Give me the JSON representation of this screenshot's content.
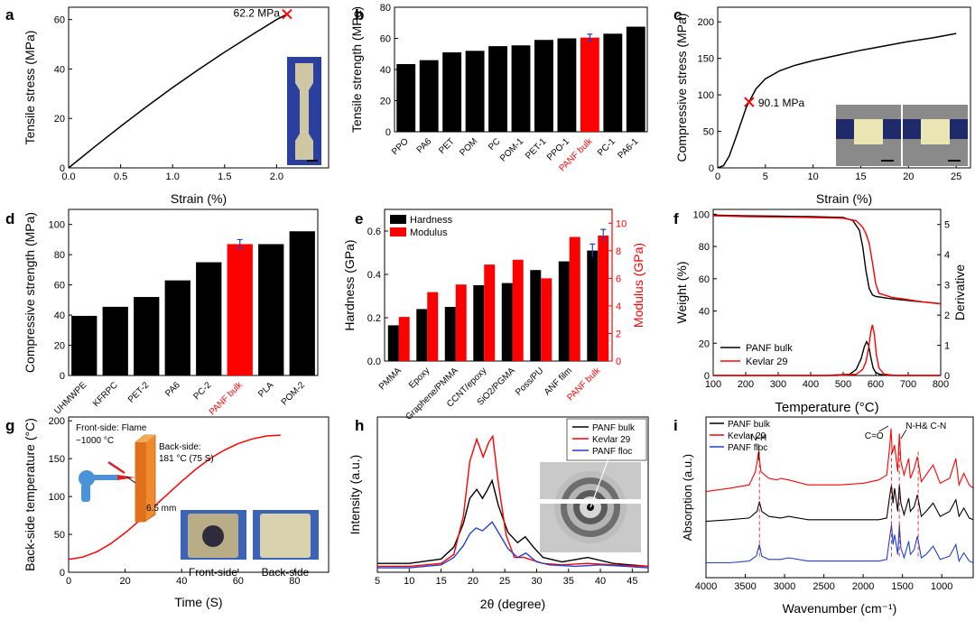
{
  "chart_data": [
    {
      "id": "a",
      "panel_label": "a",
      "type": "line",
      "xlabel": "Strain (%)",
      "ylabel": "Tensile stress (MPa)",
      "xlim": [
        0,
        2.5
      ],
      "ylim": [
        0,
        65
      ],
      "xticks": [
        0,
        0.5,
        1.0,
        1.5,
        2.0
      ],
      "xtick_labels": [
        "0.0",
        "0.5",
        "1.0",
        "1.5",
        "2.0"
      ],
      "yticks": [
        0,
        20,
        40,
        60
      ],
      "ytick_labels": [
        "0",
        "20",
        "40",
        "60"
      ],
      "series": [
        {
          "name": "tensile",
          "color": "#000000",
          "x": [
            0,
            0.25,
            0.5,
            0.75,
            1.0,
            1.25,
            1.5,
            1.75,
            2.0,
            2.1
          ],
          "y": [
            0,
            8.5,
            16.8,
            24.8,
            32.5,
            39.8,
            46.8,
            53.5,
            60.0,
            62.2
          ]
        }
      ],
      "marker": {
        "x": 2.1,
        "y": 62.2,
        "label": "62.2 MPa",
        "color": "#ff0000"
      }
    },
    {
      "id": "b",
      "panel_label": "b",
      "type": "bar",
      "ylabel": "Tensile strength (MPa)",
      "ylim": [
        0,
        80
      ],
      "yticks": [
        0,
        20,
        40,
        60,
        80
      ],
      "ytick_labels": [
        "0",
        "20",
        "40",
        "60",
        "80"
      ],
      "categories": [
        "PPO",
        "PA6",
        "PET",
        "POM",
        "PC",
        "POM-1",
        "PET-1",
        "PPO-1",
        "PANF bulk",
        "PC-1",
        "PA6-1"
      ],
      "values": [
        43.5,
        46,
        51,
        52,
        55,
        55.5,
        59,
        60,
        60.5,
        63,
        67.5
      ],
      "highlight": "PANF bulk",
      "highlight_color": "#ff0000",
      "bar_color": "#000000",
      "error": {
        "category": "PANF bulk",
        "value": 2.2,
        "color": "#1f3fd8"
      }
    },
    {
      "id": "c",
      "panel_label": "c",
      "type": "line",
      "xlabel": "Strain (%)",
      "ylabel": "Compressive stress (MPa)",
      "xlim": [
        0,
        26.5
      ],
      "ylim": [
        0,
        220
      ],
      "xticks": [
        0,
        5,
        10,
        15,
        20,
        25
      ],
      "xtick_labels": [
        "0",
        "5",
        "10",
        "15",
        "20",
        "25"
      ],
      "yticks": [
        0,
        50,
        100,
        150,
        200
      ],
      "ytick_labels": [
        "0",
        "50",
        "100",
        "150",
        "200"
      ],
      "series": [
        {
          "name": "compressive",
          "color": "#000000",
          "x": [
            0,
            0.6,
            1.2,
            2,
            3,
            4,
            5,
            6.5,
            8,
            10,
            12.5,
            15,
            17.5,
            20,
            22.5,
            25
          ],
          "y": [
            0,
            3,
            16,
            45,
            83,
            108,
            122,
            133,
            140,
            147,
            154,
            161,
            167,
            173,
            178,
            184
          ]
        }
      ],
      "marker": {
        "x": 3.3,
        "y": 90.1,
        "label": "90.1 MPa",
        "color": "#ff0000"
      }
    },
    {
      "id": "d",
      "panel_label": "d",
      "type": "bar",
      "ylabel": "Compressive strength (MPa)",
      "ylim": [
        0,
        110
      ],
      "yticks": [
        0,
        20,
        40,
        60,
        80,
        100
      ],
      "ytick_labels": [
        "0",
        "20",
        "40",
        "60",
        "80",
        "100"
      ],
      "categories": [
        "UHMWPE",
        "KFRPC",
        "PET-2",
        "PA6",
        "PC-2",
        "PANF bulk",
        "PLA",
        "POM-2"
      ],
      "values": [
        39.5,
        45.5,
        52,
        63,
        75,
        87,
        87,
        95.5
      ],
      "highlight": "PANF bulk",
      "highlight_color": "#ff0000",
      "bar_color": "#000000",
      "error": {
        "category": "PANF bulk",
        "value": 3,
        "color": "#1f3fd8"
      }
    },
    {
      "id": "e",
      "panel_label": "e",
      "type": "bar",
      "ylabel": "Hardness (GPa)",
      "y2label": "Modulus (GPa)",
      "ylim": [
        0,
        0.7
      ],
      "y2lim": [
        0,
        11
      ],
      "yticks": [
        0.0,
        0.2,
        0.4,
        0.6
      ],
      "ytick_labels": [
        "0.0",
        "0.2",
        "0.4",
        "0.6"
      ],
      "y2ticks": [
        0,
        2,
        4,
        6,
        8,
        10
      ],
      "y2tick_labels": [
        "0",
        "2",
        "4",
        "6",
        "8",
        "10"
      ],
      "categories": [
        "PMMA",
        "Epoxy",
        "Graphene/PMMA",
        "CCNT/epoxy",
        "SiO2/PGMA",
        "Poss/PU",
        "ANF film",
        "PANF bulk"
      ],
      "series": [
        {
          "name": "Hardness",
          "color": "#000000",
          "axis": "left",
          "values": [
            0.165,
            0.24,
            0.25,
            0.35,
            0.36,
            0.42,
            0.46,
            0.51
          ]
        },
        {
          "name": "Modulus",
          "color": "#ff0000",
          "axis": "right",
          "values": [
            3.2,
            5.0,
            5.55,
            7.0,
            7.35,
            6.0,
            9.0,
            9.1
          ]
        }
      ],
      "errors": {
        "Hardness": 0.03,
        "Modulus": 0.45,
        "category": "PANF bulk"
      },
      "highlight_label": "PANF bulk",
      "highlight_color": "#ff0000"
    },
    {
      "id": "f",
      "panel_label": "f",
      "type": "line",
      "xlabel": "Temperature (°C)",
      "ylabel": "Weight (%)",
      "y2label": "Derivative",
      "xlim": [
        100,
        800
      ],
      "ylim": [
        0,
        103
      ],
      "y2lim": [
        0,
        5.5
      ],
      "xticks": [
        100,
        200,
        300,
        400,
        500,
        600,
        700,
        800
      ],
      "xtick_labels": [
        "100",
        "200",
        "300",
        "400",
        "500",
        "600",
        "700",
        "800"
      ],
      "yticks": [
        0,
        20,
        40,
        60,
        80,
        100
      ],
      "ytick_labels": [
        "0",
        "20",
        "40",
        "60",
        "80",
        "100"
      ],
      "y2ticks": [
        0,
        1,
        2,
        3,
        4,
        5
      ],
      "y2tick_labels": [
        "0",
        "1",
        "2",
        "3",
        "4",
        "5"
      ],
      "series": [
        {
          "name": "PANF bulk",
          "color": "#000000",
          "axis": "left",
          "x": [
            100,
            200,
            300,
            400,
            500,
            530,
            550,
            560,
            570,
            580,
            590,
            600,
            650,
            700,
            750,
            800
          ],
          "y": [
            99.5,
            99,
            98.8,
            98.5,
            98,
            96,
            90,
            80,
            65,
            54,
            50,
            49,
            47.5,
            46.5,
            45.5,
            44.5
          ]
        },
        {
          "name": "Kevlar 29",
          "color": "#ff0000",
          "axis": "left",
          "x": [
            100,
            200,
            300,
            400,
            500,
            540,
            560,
            570,
            580,
            590,
            600,
            610,
            650,
            700,
            750,
            800
          ],
          "y": [
            99,
            98.5,
            98.3,
            98,
            97.5,
            96,
            92,
            88,
            82,
            70,
            57,
            51,
            48.5,
            47,
            45.5,
            44.5
          ]
        },
        {
          "name": "PANF bulk derivative",
          "color": "#000000",
          "axis": "right",
          "x": [
            100,
            450,
            520,
            540,
            555,
            565,
            572,
            578,
            585,
            592,
            600,
            615,
            650,
            800
          ],
          "y": [
            0,
            0,
            0.04,
            0.2,
            0.55,
            0.95,
            1.12,
            1.0,
            0.6,
            0.25,
            0.1,
            0.03,
            0.0,
            0.0
          ]
        },
        {
          "name": "Kevlar 29 derivative",
          "color": "#ff0000",
          "axis": "right",
          "x": [
            100,
            480,
            540,
            560,
            570,
            578,
            585,
            590,
            596,
            602,
            610,
            625,
            660,
            800
          ],
          "y": [
            0,
            0,
            0.04,
            0.2,
            0.45,
            0.9,
            1.45,
            1.68,
            1.35,
            0.7,
            0.25,
            0.05,
            0.0,
            0.0
          ]
        }
      ]
    },
    {
      "id": "g",
      "panel_label": "g",
      "type": "line",
      "xlabel": "Time (S)",
      "ylabel": "Back-side temperature (°C)",
      "xlim": [
        0,
        92
      ],
      "ylim": [
        0,
        205
      ],
      "xticks": [
        0,
        20,
        40,
        60,
        80
      ],
      "xtick_labels": [
        "0",
        "20",
        "40",
        "60",
        "80"
      ],
      "yticks": [
        0,
        50,
        100,
        150,
        200
      ],
      "ytick_labels": [
        "0",
        "50",
        "100",
        "150",
        "200"
      ],
      "series": [
        {
          "name": "back-side temperature",
          "color": "#ff0000",
          "x": [
            0,
            5,
            10,
            15,
            20,
            25,
            30,
            35,
            40,
            45,
            50,
            55,
            60,
            65,
            70,
            75
          ],
          "y": [
            17,
            20,
            27,
            38,
            52,
            68,
            86,
            103,
            120,
            136,
            150,
            161,
            170,
            176,
            180,
            181
          ]
        }
      ],
      "annotations": {
        "front": [
          "Front-side: Flame",
          "~1000 °C"
        ],
        "back": [
          "Back-side:",
          "181 °C (75 S)"
        ],
        "thickness": "6.5 mm",
        "photo_labels": [
          "Front-side",
          "Back-side"
        ]
      }
    },
    {
      "id": "h",
      "panel_label": "h",
      "type": "line",
      "xlabel": "2θ (degree)",
      "ylabel": "Intensity (a.u.)",
      "xlim": [
        5,
        47.5
      ],
      "xticks": [
        5,
        10,
        15,
        20,
        25,
        30,
        35,
        40,
        45
      ],
      "xtick_labels": [
        "5",
        "10",
        "15",
        "20",
        "25",
        "30",
        "35",
        "40",
        "45"
      ],
      "legend": [
        "PANF bulk",
        "Kevlar 29",
        "PANF floc"
      ],
      "series": [
        {
          "name": "PANF bulk",
          "color": "#000000",
          "x": [
            5,
            10,
            15,
            17,
            18.5,
            19.5,
            20.6,
            21.5,
            22.3,
            23.0,
            24,
            25.5,
            27,
            28.2,
            29.5,
            31,
            34,
            38,
            42,
            47.5
          ],
          "y": [
            0.06,
            0.06,
            0.09,
            0.17,
            0.33,
            0.5,
            0.56,
            0.5,
            0.56,
            0.62,
            0.45,
            0.27,
            0.2,
            0.24,
            0.17,
            0.1,
            0.07,
            0.1,
            0.06,
            0.04
          ]
        },
        {
          "name": "Kevlar 29",
          "color": "#ff0000",
          "x": [
            5,
            10,
            15,
            17,
            18.5,
            19.5,
            20.6,
            21.6,
            22.5,
            23.1,
            24,
            25.2,
            26.5,
            28,
            29.5,
            31,
            34,
            38,
            42,
            47.5
          ],
          "y": [
            0.04,
            0.04,
            0.06,
            0.12,
            0.38,
            0.75,
            0.9,
            0.78,
            0.88,
            0.92,
            0.6,
            0.25,
            0.1,
            0.1,
            0.08,
            0.06,
            0.05,
            0.06,
            0.05,
            0.04
          ]
        },
        {
          "name": "PANF floc",
          "color": "#1f3fd8",
          "x": [
            5,
            10,
            15,
            17,
            18.5,
            19.5,
            20.5,
            21.5,
            22.5,
            23.0,
            24,
            25.5,
            27,
            28.3,
            30,
            32,
            36,
            40,
            44,
            47.5
          ],
          "y": [
            0.03,
            0.03,
            0.05,
            0.1,
            0.18,
            0.26,
            0.3,
            0.28,
            0.32,
            0.34,
            0.27,
            0.16,
            0.1,
            0.13,
            0.07,
            0.05,
            0.04,
            0.05,
            0.04,
            0.03
          ]
        }
      ]
    },
    {
      "id": "i",
      "panel_label": "i",
      "type": "line",
      "xlabel": "Wavenumber (cm⁻¹)",
      "ylabel": "Absorption (a.u.)",
      "xlim": [
        4000,
        600
      ],
      "x_reversed": true,
      "xticks": [
        4000,
        3500,
        3000,
        2500,
        2000,
        1500,
        1000
      ],
      "xtick_labels": [
        "4000",
        "3500",
        "3000",
        "2500",
        "2000",
        "1500",
        "1000"
      ],
      "legend": [
        "PANF bulk",
        "Kevlar 29",
        "PANF floc"
      ],
      "peak_labels": [
        "N-H",
        "C=O",
        "N-H& C-N"
      ],
      "peak_positions": [
        3320,
        1640,
        1540,
        1300
      ],
      "series": [
        {
          "name": "PANF bulk",
          "color": "#000000",
          "x": [
            4000,
            3700,
            3450,
            3350,
            3320,
            3290,
            3200,
            3050,
            2950,
            2700,
            2300,
            2000,
            1800,
            1700,
            1660,
            1640,
            1620,
            1600,
            1560,
            1540,
            1520,
            1480,
            1420,
            1400,
            1350,
            1310,
            1260,
            1200,
            1110,
            1020,
            900,
            820,
            780,
            720,
            650,
            600
          ],
          "y": [
            0.44,
            0.45,
            0.46,
            0.5,
            0.56,
            0.5,
            0.47,
            0.46,
            0.47,
            0.45,
            0.45,
            0.45,
            0.45,
            0.46,
            0.6,
            0.66,
            0.55,
            0.64,
            0.5,
            0.66,
            0.55,
            0.48,
            0.58,
            0.5,
            0.53,
            0.6,
            0.47,
            0.5,
            0.55,
            0.47,
            0.5,
            0.57,
            0.47,
            0.52,
            0.46,
            0.45
          ]
        },
        {
          "name": "Kevlar 29",
          "color": "#ff0000",
          "x": [
            4000,
            3700,
            3450,
            3370,
            3330,
            3300,
            3200,
            3100,
            3050,
            2950,
            2700,
            2300,
            2000,
            1800,
            1700,
            1660,
            1645,
            1630,
            1600,
            1560,
            1540,
            1520,
            1480,
            1420,
            1400,
            1350,
            1310,
            1260,
            1200,
            1110,
            1020,
            900,
            820,
            780,
            720,
            650,
            600
          ],
          "y": [
            0.62,
            0.64,
            0.66,
            0.74,
            0.86,
            0.74,
            0.7,
            0.69,
            0.7,
            0.69,
            0.66,
            0.66,
            0.67,
            0.69,
            0.72,
            0.9,
            1.0,
            0.85,
            0.9,
            0.74,
            0.97,
            0.8,
            0.72,
            0.82,
            0.7,
            0.76,
            0.83,
            0.68,
            0.72,
            0.78,
            0.67,
            0.7,
            0.82,
            0.66,
            0.73,
            0.66,
            0.64
          ]
        },
        {
          "name": "PANF floc",
          "color": "#1f3fd8",
          "x": [
            4000,
            3700,
            3450,
            3360,
            3320,
            3290,
            3200,
            3050,
            2950,
            2700,
            2300,
            2000,
            1800,
            1700,
            1660,
            1640,
            1620,
            1600,
            1560,
            1540,
            1520,
            1480,
            1420,
            1400,
            1350,
            1310,
            1260,
            1200,
            1110,
            1020,
            900,
            820,
            780,
            720,
            650,
            600
          ],
          "y": [
            0.19,
            0.19,
            0.2,
            0.23,
            0.3,
            0.23,
            0.21,
            0.21,
            0.22,
            0.2,
            0.2,
            0.2,
            0.2,
            0.21,
            0.35,
            0.42,
            0.3,
            0.36,
            0.24,
            0.42,
            0.28,
            0.22,
            0.32,
            0.24,
            0.27,
            0.35,
            0.22,
            0.24,
            0.29,
            0.21,
            0.23,
            0.3,
            0.2,
            0.25,
            0.2,
            0.19
          ]
        }
      ]
    }
  ]
}
